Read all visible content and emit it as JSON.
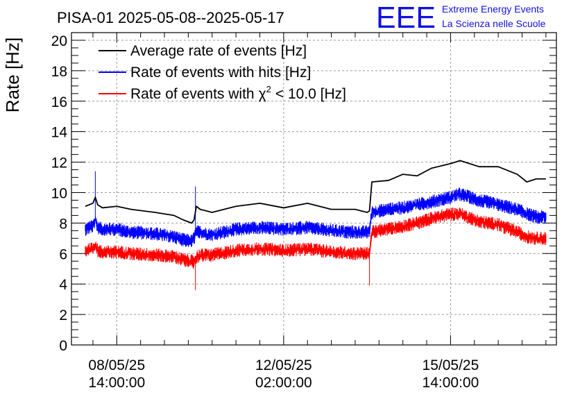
{
  "header": {
    "title": "PISA-01 2025-05-08--2025-05-17",
    "logo_text": "EEE",
    "logo_line1": "Extreme Energy Events",
    "logo_line2": "La Scienza nelle Scuole"
  },
  "chart_data": {
    "type": "line",
    "title": "PISA-01 2025-05-08--2025-05-17",
    "xlabel": "",
    "ylabel": "Rate [Hz]",
    "ylim": [
      0,
      20.5
    ],
    "yticks": [
      0,
      2,
      4,
      6,
      8,
      10,
      12,
      14,
      16,
      18,
      20
    ],
    "xlim": [
      -0.95,
      9.22
    ],
    "x_unit": "days since 08/05/25 14:00:00",
    "xticks": [
      {
        "x": 0,
        "label_date": "08/05/25",
        "label_time": "14:00:00"
      },
      {
        "x": 3.5,
        "label_date": "12/05/25",
        "label_time": "02:00:00"
      },
      {
        "x": 7,
        "label_date": "15/05/25",
        "label_time": "14:00:00"
      }
    ],
    "grid": true,
    "legend_position": "top-left",
    "colors": {
      "average": "#000000",
      "hits": "#0000ff",
      "chi2": "#ff0000"
    },
    "series": [
      {
        "name": "Average rate of events [Hz]",
        "legend_label": "Average rate of events [Hz]",
        "color": "#000000",
        "x": [
          -0.66,
          -0.5,
          -0.45,
          -0.4,
          -0.3,
          0,
          0.3,
          0.8,
          1.2,
          1.4,
          1.57,
          1.62,
          1.67,
          1.75,
          2.0,
          2.5,
          3.0,
          3.5,
          4.0,
          4.5,
          5.0,
          5.25,
          5.3,
          5.35,
          5.7,
          6.0,
          6.3,
          6.6,
          7.0,
          7.2,
          7.6,
          8.0,
          8.4,
          8.6,
          8.8,
          9.0
        ],
        "y": [
          9.1,
          9.3,
          9.7,
          9.2,
          9.0,
          9.1,
          8.9,
          8.7,
          8.5,
          8.2,
          8.0,
          8.2,
          9.1,
          8.9,
          8.7,
          9.1,
          9.3,
          9.0,
          9.3,
          8.9,
          8.9,
          8.7,
          8.8,
          10.7,
          10.8,
          11.2,
          11.1,
          11.6,
          11.9,
          12.1,
          11.7,
          11.7,
          11.2,
          10.7,
          10.9,
          10.9
        ]
      },
      {
        "name": "Rate of events with hits [Hz]",
        "legend_label": "Rate of events with hits [Hz]",
        "color": "#0000ff",
        "x": [
          -0.66,
          -0.5,
          -0.45,
          -0.4,
          -0.3,
          0,
          0.3,
          0.8,
          1.2,
          1.4,
          1.57,
          1.62,
          1.67,
          1.75,
          2.0,
          2.5,
          3.0,
          3.5,
          4.0,
          4.5,
          5.0,
          5.25,
          5.3,
          5.35,
          5.7,
          6.0,
          6.3,
          6.6,
          7.0,
          7.2,
          7.6,
          8.0,
          8.4,
          8.6,
          8.8,
          9.0
        ],
        "y": [
          7.6,
          7.8,
          8.2,
          7.7,
          7.6,
          7.6,
          7.4,
          7.3,
          7.1,
          6.9,
          6.8,
          7.0,
          7.4,
          7.4,
          7.2,
          7.6,
          7.7,
          7.6,
          7.7,
          7.5,
          7.4,
          7.4,
          7.5,
          8.7,
          8.9,
          9.0,
          9.2,
          9.4,
          9.7,
          9.9,
          9.5,
          9.2,
          8.9,
          8.6,
          8.4,
          8.4
        ],
        "noise": 0.45,
        "spikes": [
          {
            "x": -0.45,
            "y": 11.4
          },
          {
            "x": 1.65,
            "y": 10.4
          }
        ]
      },
      {
        "name": "Rate of events with chi2 < 10.0 [Hz]",
        "legend_label": "Rate of events with",
        "legend_symbol": "χ",
        "legend_superscript": "2",
        "legend_suffix": "< 10.0 [Hz]",
        "color": "#ff0000",
        "x": [
          -0.66,
          -0.5,
          -0.45,
          -0.4,
          -0.3,
          0,
          0.3,
          0.8,
          1.2,
          1.4,
          1.57,
          1.62,
          1.67,
          1.75,
          2.0,
          2.5,
          3.0,
          3.5,
          4.0,
          4.5,
          5.0,
          5.25,
          5.3,
          5.35,
          5.7,
          6.0,
          6.3,
          6.6,
          7.0,
          7.2,
          7.6,
          8.0,
          8.4,
          8.6,
          8.8,
          9.0
        ],
        "y": [
          6.2,
          6.3,
          6.6,
          6.2,
          6.1,
          6.1,
          6.0,
          5.9,
          5.8,
          5.6,
          5.5,
          5.4,
          5.8,
          5.9,
          5.9,
          6.2,
          6.3,
          6.2,
          6.3,
          6.1,
          6.0,
          6.0,
          6.1,
          7.4,
          7.6,
          7.8,
          8.0,
          8.3,
          8.6,
          8.6,
          8.1,
          7.9,
          7.4,
          7.1,
          7.0,
          7.0
        ],
        "noise": 0.45,
        "spikes": [
          {
            "x": 1.65,
            "y": 3.6
          },
          {
            "x": 5.3,
            "y": 3.9
          }
        ]
      }
    ]
  }
}
